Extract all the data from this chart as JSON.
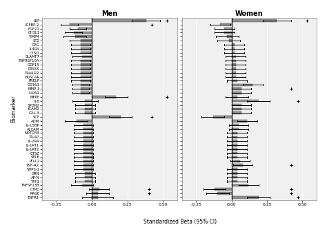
{
  "biomarkers": [
    "LEP",
    "IGFBP-2",
    "FGF21",
    "CH3L1",
    "TIMP4",
    "ST2",
    "OPG",
    "IL4RA",
    "CTSD",
    "SLAMF7",
    "TNFRSF10A",
    "GDF15",
    "PRSSS",
    "TRAILR2",
    "HOSCAR",
    "PRELP",
    "CD163",
    "MMP-3",
    "U-PAR",
    "MEPE",
    "IL6",
    "SPON2",
    "ICAM2",
    "GAL-3",
    "SCF",
    "ADM",
    "IL-15BP",
    "ALCAM",
    "NOTCH3",
    "TR-AP",
    "IL-2RA",
    "IL-1RT1",
    "IL-1RT2",
    "CTSZ",
    "SELE",
    "PD-L2",
    "TNF-R2",
    "SHPS-1",
    "GRN",
    "AP-N",
    "TFF3",
    "TNFSF13B",
    "CTRC",
    "RAGE",
    "TNFR1"
  ],
  "men_beta": [
    0.38,
    -0.16,
    -0.1,
    -0.13,
    -0.12,
    -0.08,
    -0.08,
    -0.08,
    -0.08,
    -0.07,
    -0.08,
    -0.08,
    -0.08,
    -0.08,
    -0.08,
    -0.08,
    -0.08,
    -0.08,
    -0.08,
    0.17,
    -0.05,
    -0.05,
    -0.05,
    -0.05,
    0.2,
    -0.11,
    -0.06,
    -0.06,
    -0.06,
    -0.06,
    -0.06,
    -0.06,
    -0.06,
    -0.06,
    -0.06,
    -0.06,
    -0.06,
    -0.06,
    -0.05,
    -0.05,
    -0.05,
    -0.07,
    0.05,
    0.04,
    0.04
  ],
  "men_ci_low": [
    0.28,
    -0.22,
    -0.16,
    -0.19,
    -0.2,
    -0.16,
    -0.15,
    -0.15,
    -0.15,
    -0.14,
    -0.15,
    -0.15,
    -0.15,
    -0.15,
    -0.15,
    -0.15,
    -0.14,
    -0.14,
    -0.14,
    0.09,
    -0.14,
    -0.12,
    -0.12,
    -0.12,
    0.12,
    -0.19,
    -0.13,
    -0.13,
    -0.13,
    -0.13,
    -0.13,
    -0.13,
    -0.13,
    -0.13,
    -0.13,
    -0.13,
    -0.13,
    -0.13,
    -0.12,
    -0.12,
    -0.12,
    -0.15,
    -0.02,
    -0.04,
    -0.07
  ],
  "men_ci_high": [
    0.48,
    -0.1,
    -0.04,
    -0.07,
    -0.04,
    0.0,
    -0.01,
    -0.01,
    -0.01,
    0.0,
    -0.01,
    -0.01,
    -0.01,
    -0.01,
    -0.01,
    -0.01,
    -0.02,
    -0.02,
    -0.02,
    0.25,
    0.04,
    0.02,
    0.02,
    0.02,
    0.28,
    -0.03,
    0.01,
    0.01,
    0.01,
    0.01,
    0.01,
    0.01,
    0.01,
    0.01,
    0.01,
    0.01,
    0.01,
    0.01,
    0.02,
    0.02,
    0.02,
    0.01,
    0.12,
    0.12,
    0.15
  ],
  "men_outlier_x": [
    0.53,
    0.42,
    null,
    null,
    null,
    null,
    null,
    null,
    null,
    null,
    null,
    null,
    null,
    null,
    null,
    null,
    null,
    null,
    null,
    0.53,
    null,
    null,
    null,
    null,
    0.42,
    null,
    null,
    null,
    null,
    null,
    null,
    null,
    null,
    null,
    null,
    null,
    null,
    null,
    null,
    null,
    null,
    null,
    0.4,
    0.4,
    null
  ],
  "women_beta": [
    0.32,
    -0.08,
    -0.05,
    -0.05,
    -0.03,
    -0.02,
    0.02,
    0.02,
    0.02,
    0.03,
    0.03,
    0.03,
    0.03,
    0.03,
    0.03,
    0.04,
    0.15,
    0.07,
    0.07,
    0.04,
    0.19,
    0.07,
    0.07,
    0.07,
    -0.13,
    0.11,
    0.05,
    0.05,
    0.04,
    0.04,
    0.04,
    0.04,
    0.04,
    0.04,
    0.04,
    0.06,
    0.08,
    0.04,
    0.04,
    0.04,
    0.04,
    0.12,
    -0.12,
    -0.1,
    0.19
  ],
  "women_ci_low": [
    0.22,
    -0.15,
    -0.12,
    -0.12,
    -0.11,
    -0.1,
    -0.05,
    -0.05,
    -0.05,
    -0.04,
    -0.04,
    -0.04,
    -0.04,
    -0.04,
    -0.04,
    -0.03,
    0.08,
    0.0,
    0.0,
    -0.04,
    0.11,
    0.0,
    0.0,
    0.0,
    -0.21,
    0.04,
    -0.02,
    -0.02,
    -0.03,
    -0.03,
    -0.03,
    -0.03,
    -0.03,
    -0.03,
    -0.03,
    -0.01,
    0.01,
    -0.03,
    -0.03,
    -0.03,
    -0.03,
    0.05,
    -0.2,
    -0.18,
    0.11
  ],
  "women_ci_high": [
    0.42,
    -0.01,
    0.02,
    0.02,
    0.05,
    0.06,
    0.09,
    0.09,
    0.09,
    0.1,
    0.1,
    0.1,
    0.1,
    0.1,
    0.1,
    0.11,
    0.22,
    0.14,
    0.14,
    0.12,
    0.27,
    0.14,
    0.14,
    0.14,
    -0.05,
    0.18,
    0.12,
    0.12,
    0.11,
    0.11,
    0.11,
    0.11,
    0.11,
    0.11,
    0.11,
    0.13,
    0.15,
    0.11,
    0.11,
    0.11,
    0.11,
    0.19,
    -0.04,
    -0.02,
    0.27
  ],
  "women_outlier_x": [
    0.53,
    null,
    null,
    null,
    null,
    null,
    null,
    null,
    null,
    null,
    null,
    null,
    null,
    null,
    null,
    null,
    null,
    0.42,
    null,
    null,
    0.47,
    null,
    null,
    null,
    null,
    null,
    null,
    null,
    null,
    null,
    null,
    null,
    null,
    null,
    null,
    null,
    0.42,
    null,
    null,
    null,
    null,
    null,
    0.42,
    0.42,
    0.47
  ],
  "bar_color": "#909090",
  "bar_edgecolor": "#505050",
  "bg_color": "#f0f0f0",
  "grid_color": "#ffffff",
  "title_men": "Men",
  "title_women": "Women",
  "xlabel": "Standardized Beta (95% CI)",
  "ylabel": "Biomarker",
  "xlim": [
    -0.35,
    0.6
  ],
  "xticks": [
    -0.25,
    0.0,
    0.25,
    0.5
  ],
  "xtick_labels": [
    "-0.25",
    "0.00",
    "0.25",
    "0.50"
  ]
}
